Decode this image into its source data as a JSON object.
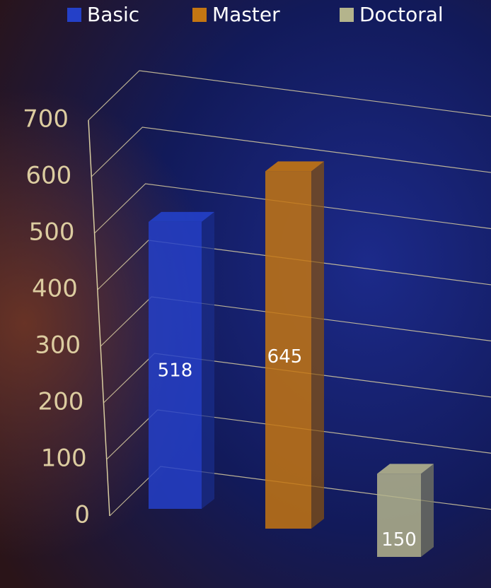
{
  "chart_data": {
    "type": "bar",
    "categories": [
      null
    ],
    "series": [
      {
        "name": "Basic",
        "color": "#2440c8",
        "values": [
          518
        ]
      },
      {
        "name": "Master",
        "color": "#c47612",
        "values": [
          645
        ]
      },
      {
        "name": "Doctoral",
        "color": "#b4b48c",
        "values": [
          150
        ]
      }
    ],
    "ylim": [
      0,
      700
    ],
    "yticks": [
      0,
      100,
      200,
      300,
      400,
      500,
      600,
      700
    ],
    "grid": true,
    "legend": "top"
  }
}
